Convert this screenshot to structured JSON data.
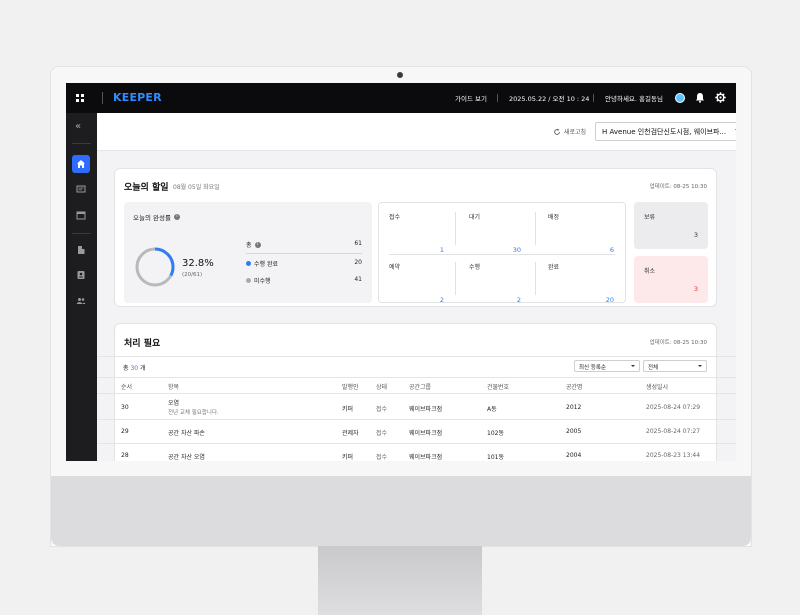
{
  "topbar": {
    "logo": "KEEPER",
    "guide": "가이드 보기",
    "datetime": "2025.05.22 / 오전 10 : 24",
    "greeting": "안녕하세요. 홍길동님"
  },
  "header": {
    "refresh_label": "새로고침",
    "site_select": "H Avenue 인천검단신도시점, 웨이브파..."
  },
  "today": {
    "title": "오늘의 할일",
    "date": "08월 05일 화요일",
    "updated": "업데이트: 08-25 10:30",
    "rate": {
      "title": "오늘의 완성률",
      "percent": "32.8%",
      "fraction": "(20/61)",
      "progress": 0.328,
      "rows": [
        {
          "label": "총",
          "value": "61"
        },
        {
          "label": "수행 완료",
          "value": "20"
        },
        {
          "label": "미수행",
          "value": "41"
        }
      ]
    },
    "stats": [
      {
        "label": "접수",
        "value": "1"
      },
      {
        "label": "대기",
        "value": "30"
      },
      {
        "label": "배정",
        "value": "6"
      },
      {
        "label": "예약",
        "value": "2"
      },
      {
        "label": "수행",
        "value": "2"
      },
      {
        "label": "완료",
        "value": "20"
      }
    ],
    "hold": {
      "label": "보류",
      "value": "3"
    },
    "cancel": {
      "label": "취소",
      "value": "3"
    }
  },
  "pending": {
    "title": "처리 필요",
    "updated": "업데이트: 08-25 10:30",
    "total_prefix": "총",
    "total_count": "30",
    "total_suffix": "개",
    "sort_select": "최신 등록순",
    "filter_select": "전체",
    "columns": [
      "순서",
      "항목",
      "발행인",
      "상태",
      "공간그룹",
      "건물번호",
      "공간명",
      "생성일시"
    ],
    "rows": [
      {
        "no": "30",
        "item": "오염",
        "desc": "전년 교체 필요합니다.",
        "issuer": "키퍼",
        "status": "접수",
        "group": "웨이브파크점",
        "building": "A동",
        "space": "2012",
        "created": "2025-08-24 07:29"
      },
      {
        "no": "29",
        "item": "공간 자산 파손",
        "desc": "",
        "issuer": "관제자",
        "status": "접수",
        "group": "웨이브파크점",
        "building": "102동",
        "space": "2005",
        "created": "2025-08-24 07:27"
      },
      {
        "no": "28",
        "item": "공간 자산 오염",
        "desc": "",
        "issuer": "키퍼",
        "status": "접수",
        "group": "웨이브파크점",
        "building": "101동",
        "space": "2004",
        "created": "2025-08-23 13:44"
      }
    ]
  },
  "colors": {
    "accent": "#2f7df6",
    "topbar_bg": "#0b0b0d",
    "cancel_bg": "#fde8ea",
    "cancel_text": "#e0323f"
  }
}
